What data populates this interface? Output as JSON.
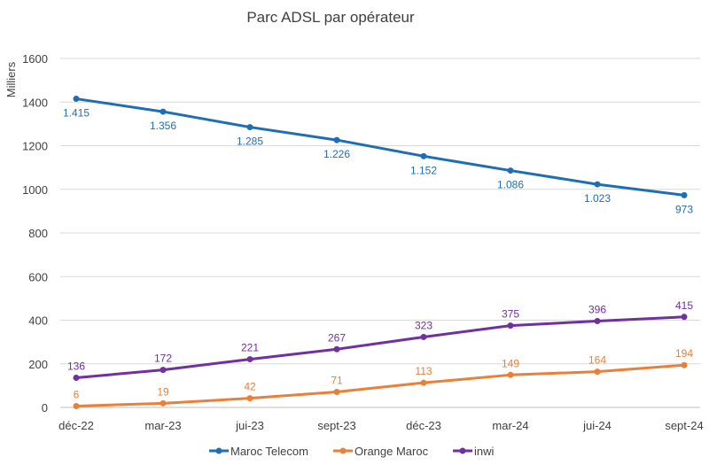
{
  "chart_data": {
    "type": "line",
    "title": "Parc ADSL par opérateur",
    "ylabel": "Milliers",
    "xlabel": "",
    "ylim": [
      0,
      1600
    ],
    "yticks": [
      0,
      200,
      400,
      600,
      800,
      1000,
      1200,
      1400,
      1600
    ],
    "ytick_labels": [
      "0",
      "200",
      "400",
      "600",
      "800",
      "1000",
      "1200",
      "1400",
      "1600"
    ],
    "categories": [
      "déc-22",
      "mar-23",
      "jui-23",
      "sept-23",
      "déc-23",
      "mar-24",
      "jui-24",
      "sept-24"
    ],
    "grid": true,
    "legend_position": "bottom",
    "series": [
      {
        "name": "Maroc Telecom",
        "color": "#1f6eb4",
        "values": [
          1415,
          1356,
          1285,
          1226,
          1152,
          1086,
          1023,
          973
        ],
        "labels": [
          "1.415",
          "1.356",
          "1.285",
          "1.226",
          "1.152",
          "1.086",
          "1.023",
          "973"
        ],
        "label_position": "below"
      },
      {
        "name": "Orange Maroc",
        "color": "#e8803a",
        "values": [
          6,
          19,
          42,
          71,
          113,
          149,
          164,
          194
        ],
        "labels": [
          "6",
          "19",
          "42",
          "71",
          "113",
          "149",
          "164",
          "194"
        ],
        "label_position": "above"
      },
      {
        "name": "inwi",
        "color": "#7030a0",
        "values": [
          136,
          172,
          221,
          267,
          323,
          375,
          396,
          415
        ],
        "labels": [
          "136",
          "172",
          "221",
          "267",
          "323",
          "375",
          "396",
          "415"
        ],
        "label_position": "above"
      }
    ]
  }
}
